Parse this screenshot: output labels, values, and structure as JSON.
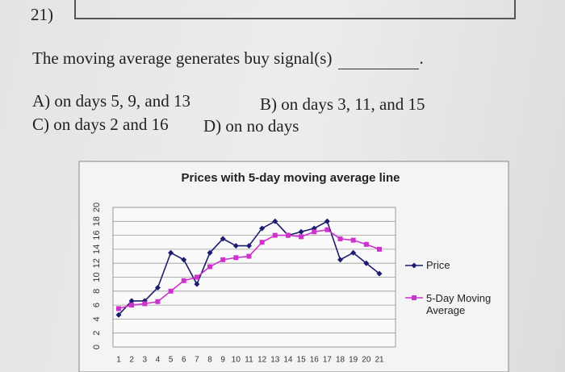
{
  "question": {
    "number": "21)",
    "prompt": "The moving average generates buy signal(s)",
    "prompt_end": ".",
    "options": [
      "A) on days 5, 9, and 13",
      "B) on days 3, 11, and 15",
      "C) on days 2 and 16",
      "D) on no days"
    ]
  },
  "chart_data": {
    "type": "line",
    "title": "Prices with 5-day moving average line",
    "categories": [
      1,
      2,
      3,
      4,
      5,
      6,
      7,
      8,
      9,
      10,
      11,
      12,
      13,
      14,
      15,
      16,
      17,
      18,
      19,
      20,
      21
    ],
    "series": [
      {
        "name": "Price",
        "color": "#1c1c70",
        "marker": "diamond",
        "values": [
          4.6,
          6.6,
          6.6,
          8.5,
          13.5,
          12.5,
          9,
          13.5,
          15.5,
          14.5,
          14.5,
          17,
          18,
          16,
          16.5,
          17,
          18,
          12.5,
          13.5,
          12,
          10.5
        ]
      },
      {
        "name": "5-Day Moving Average",
        "color": "#cc33cc",
        "marker": "square",
        "values": [
          5.5,
          6,
          6.2,
          6.5,
          8,
          9.5,
          10,
          11.5,
          12.5,
          12.8,
          13,
          15,
          16,
          16,
          15.8,
          16.5,
          16.8,
          15.5,
          15.3,
          14.7,
          14
        ]
      }
    ],
    "ylim": [
      0,
      20
    ],
    "yticks": [
      0,
      2,
      4,
      6,
      8,
      10,
      12,
      14,
      16,
      18,
      20
    ],
    "grid": true,
    "legend": "right"
  }
}
